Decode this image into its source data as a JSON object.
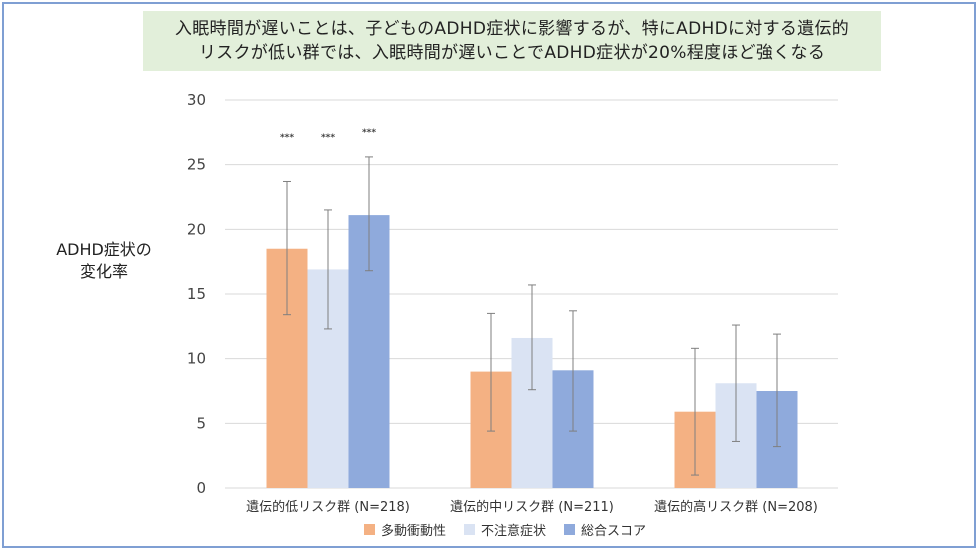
{
  "header": {
    "line1": "入眠時間が遅いことは、子どものADHD症状に影響するが、特にADHDに対する遺伝的",
    "line2": "リスクが低い群では、入眠時間が遅いことでADHD症状が20%程度ほど強くなる"
  },
  "chart_data": {
    "type": "bar",
    "ylabel_line1": "ADHD症状の",
    "ylabel_line2": "変化率",
    "ylim": [
      0,
      30
    ],
    "yticks": [
      0,
      5,
      10,
      15,
      20,
      25,
      30
    ],
    "grid": true,
    "legend_position": "bottom",
    "categories": [
      "遺伝的低リスク群 (N=218)",
      "遺伝的中リスク群 (N=211)",
      "遺伝的高リスク群 (N=208)"
    ],
    "series": [
      {
        "name": "多動衝動性",
        "color": "#f4b183",
        "values": [
          18.5,
          9.0,
          5.9
        ],
        "err_low": [
          13.4,
          4.4,
          1.0
        ],
        "err_high": [
          23.7,
          13.5,
          10.8
        ]
      },
      {
        "name": "不注意症状",
        "color": "#dae3f3",
        "values": [
          16.9,
          11.6,
          8.1
        ],
        "err_low": [
          12.3,
          7.6,
          3.6
        ],
        "err_high": [
          21.5,
          15.7,
          12.6
        ]
      },
      {
        "name": "総合スコア",
        "color": "#8faadc",
        "values": [
          21.1,
          9.1,
          7.5
        ],
        "err_low": [
          16.8,
          4.4,
          3.2
        ],
        "err_high": [
          25.6,
          13.7,
          11.9
        ]
      }
    ],
    "annotations": [
      {
        "category": 0,
        "series": 0,
        "text": "***"
      },
      {
        "category": 0,
        "series": 1,
        "text": "***"
      },
      {
        "category": 0,
        "series": 2,
        "text": "***"
      }
    ]
  }
}
